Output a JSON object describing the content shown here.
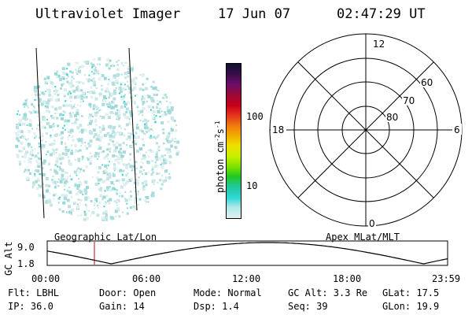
{
  "header": {
    "title": "Ultraviolet Imager",
    "date": "17 Jun 07",
    "time": "02:47:29 UT"
  },
  "colorbar": {
    "label": "photon cm",
    "label_sup1": "-2",
    "label_mid": "s",
    "label_sup2": "-1",
    "ticks": [
      "100",
      "10"
    ],
    "colors": [
      "#101030",
      "#3a0d4a",
      "#6a0d6a",
      "#9a0a3a",
      "#c8001a",
      "#e0301a",
      "#f07a10",
      "#f0b000",
      "#f0e000",
      "#c8f000",
      "#7ae000",
      "#20c820",
      "#20c8a0",
      "#30d8d8",
      "#b0e8e8",
      "#e0f0f0"
    ]
  },
  "polar": {
    "mlt_labels": [
      "12",
      "18",
      "6",
      "0"
    ],
    "mlat_labels": [
      "60",
      "70",
      "80"
    ]
  },
  "orbit": {
    "ylabel": "GC Alt",
    "yticks": [
      "9.0",
      "1.8"
    ],
    "left_title": "Geographic Lat/Lon",
    "right_title": "Apex MLat/MLT",
    "xticks": [
      "00:00",
      "06:00",
      "12:00",
      "18:00",
      "23:59"
    ],
    "marker_color": "#c83232"
  },
  "status": {
    "flt": "Flt: LBHL",
    "door": "Door: Open",
    "mode": "Mode: Normal",
    "gc_alt": "GC Alt: 3.3 Re",
    "glat": "GLat:  17.5",
    "ip": "IP: 36.0",
    "gain": "Gain: 14",
    "dsp": "Dsp:    1.4",
    "seq": "Seq: 39",
    "glon": "GLon:   19.9"
  }
}
